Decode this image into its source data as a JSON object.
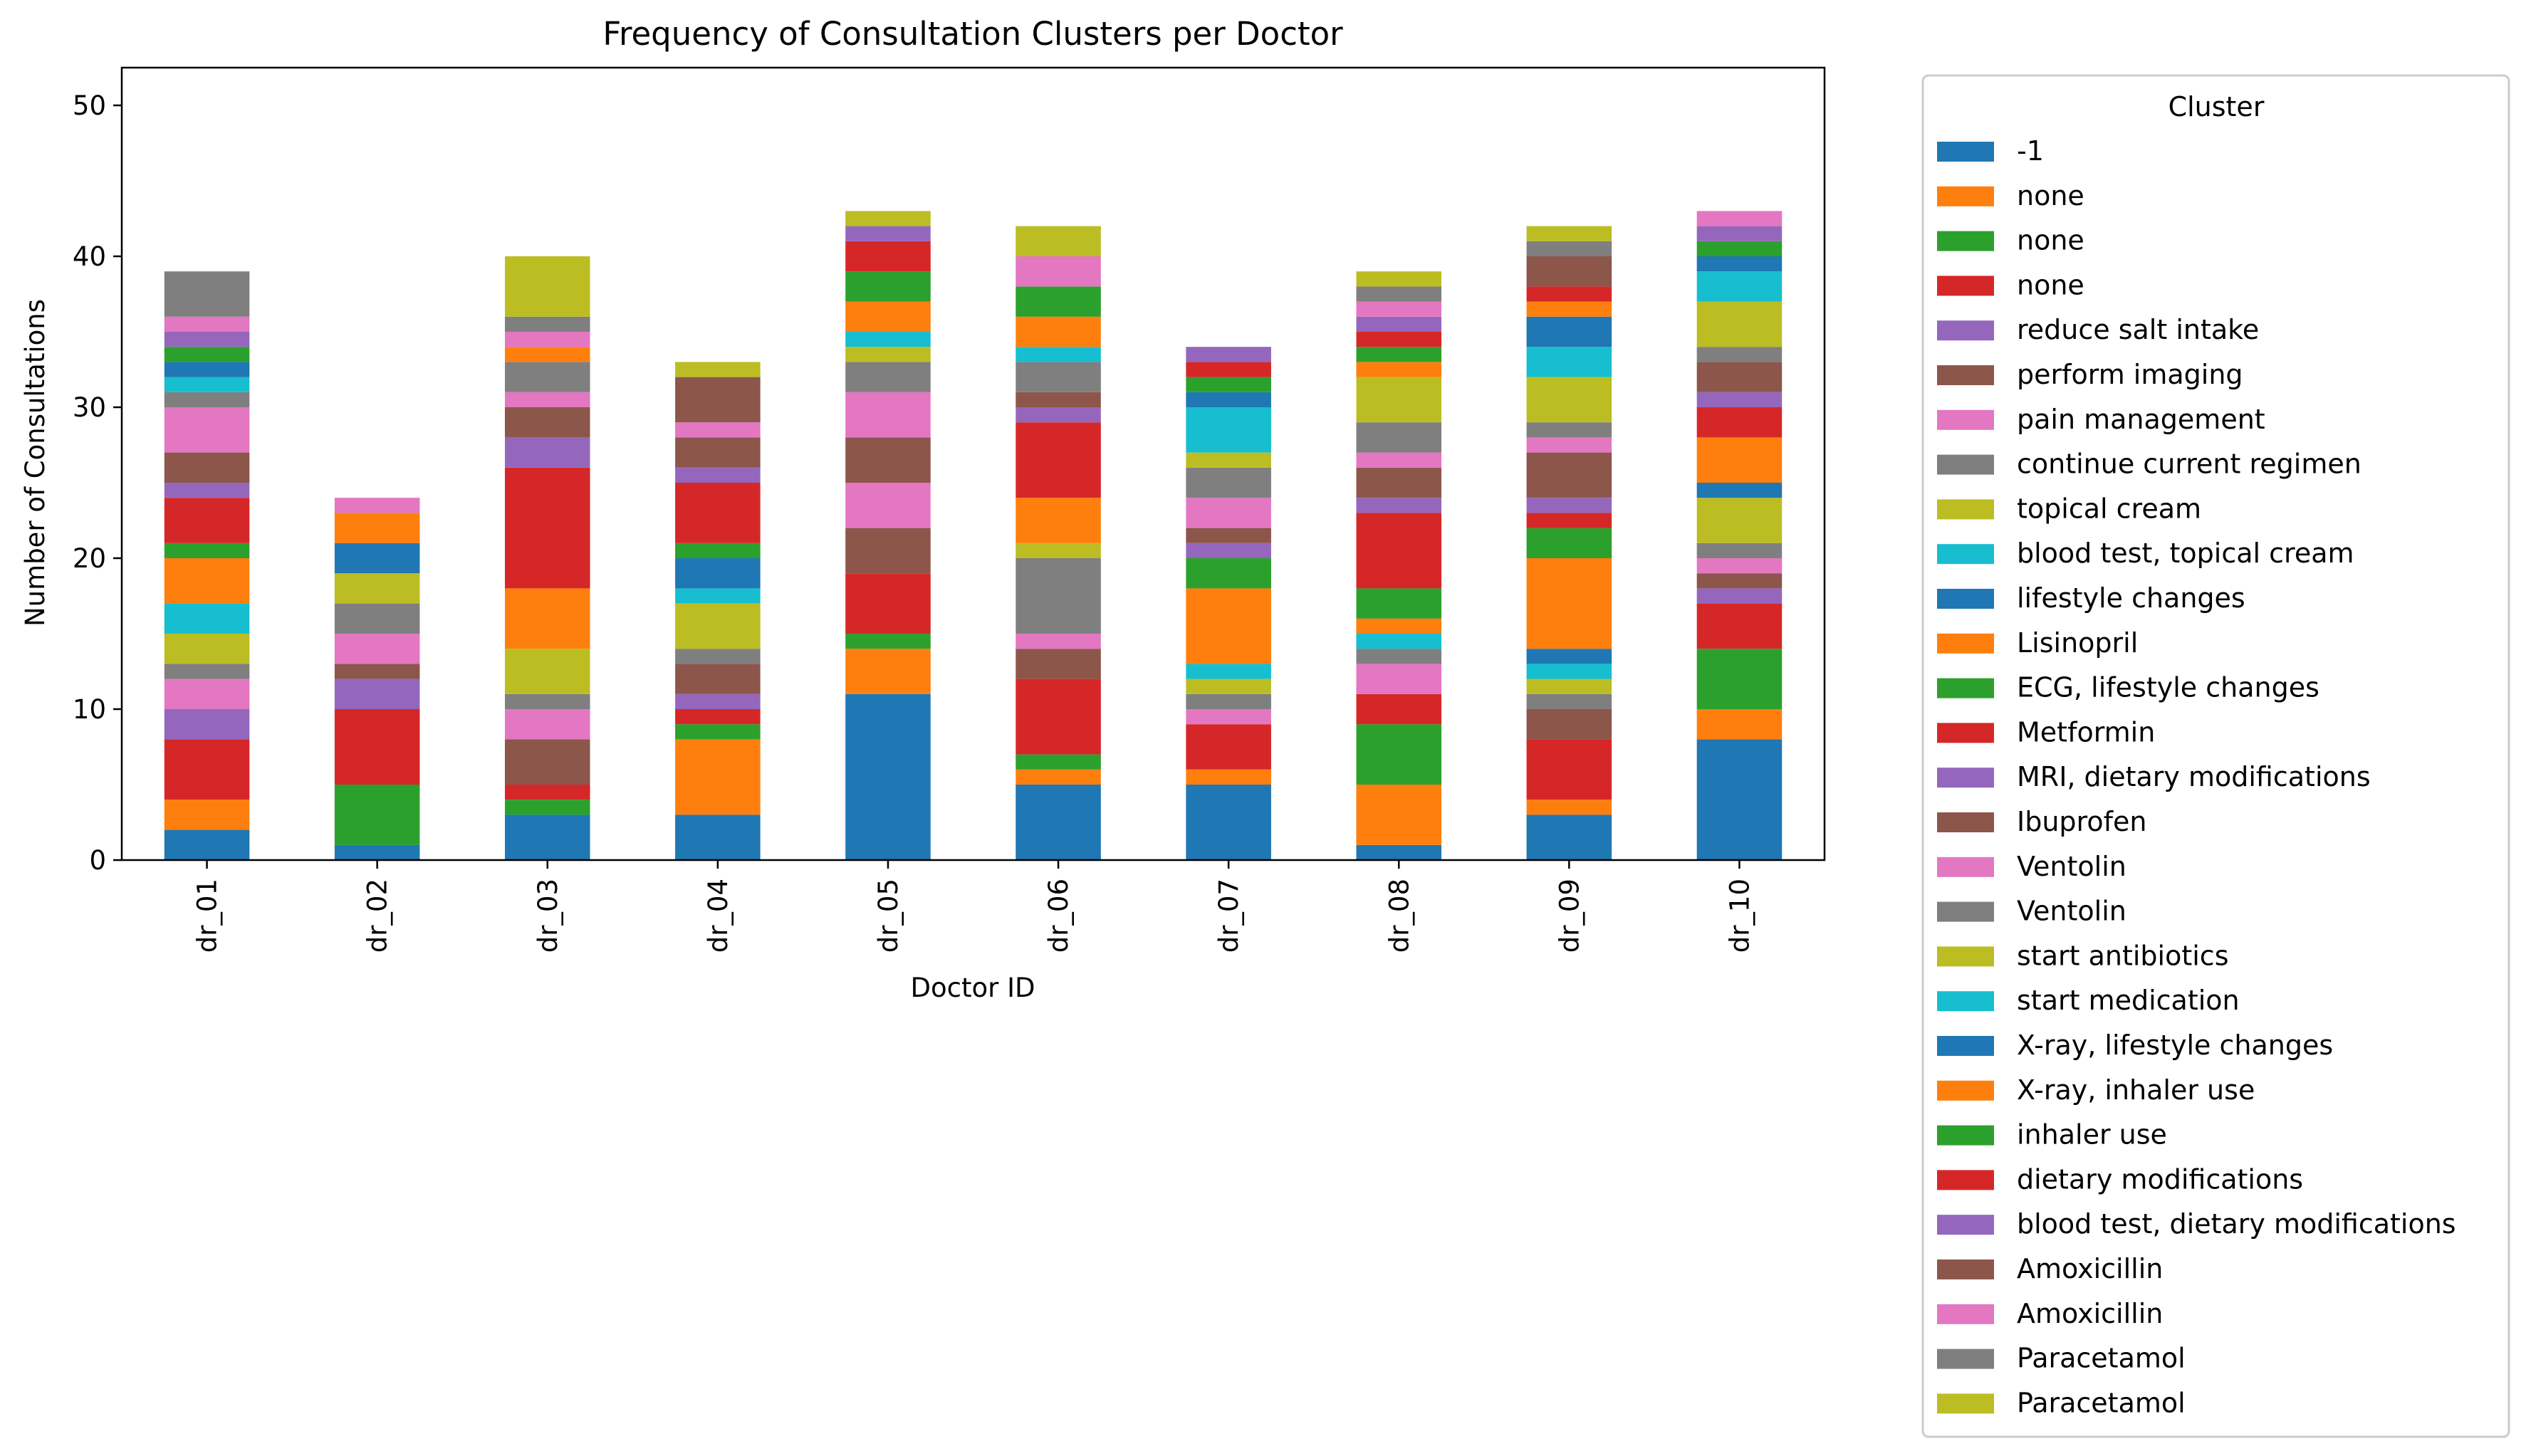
{
  "chart_data": {
    "type": "bar",
    "stacked": true,
    "title": "Frequency of Consultation Clusters per Doctor",
    "xlabel": "Doctor ID",
    "ylabel": "Number of Consultations",
    "ylim": [
      0,
      52.5
    ],
    "yticks": [
      0,
      10,
      20,
      30,
      40,
      50
    ],
    "grid": false,
    "legend_title": "Cluster",
    "legend_position": "outside-right",
    "categories": [
      "dr_01",
      "dr_02",
      "dr_03",
      "dr_04",
      "dr_05",
      "dr_06",
      "dr_07",
      "dr_08",
      "dr_09",
      "dr_10"
    ],
    "series": [
      {
        "name": "-1",
        "color": "#1f77b4",
        "values": [
          2,
          1,
          3,
          3,
          11,
          5,
          5,
          1,
          3,
          8
        ]
      },
      {
        "name": "none",
        "color": "#ff7f0e",
        "values": [
          2,
          0,
          0,
          5,
          3,
          1,
          1,
          4,
          1,
          2
        ]
      },
      {
        "name": "none",
        "color": "#2ca02c",
        "values": [
          0,
          4,
          1,
          1,
          1,
          1,
          0,
          4,
          0,
          4
        ]
      },
      {
        "name": "none",
        "color": "#d62728",
        "values": [
          4,
          5,
          1,
          1,
          4,
          5,
          3,
          2,
          4,
          3
        ]
      },
      {
        "name": "reduce salt intake",
        "color": "#9467bd",
        "values": [
          2,
          2,
          0,
          1,
          0,
          0,
          0,
          0,
          0,
          1
        ]
      },
      {
        "name": "perform imaging",
        "color": "#8c564b",
        "values": [
          0,
          1,
          3,
          2,
          3,
          2,
          0,
          0,
          2,
          1
        ]
      },
      {
        "name": "pain management",
        "color": "#e377c2",
        "values": [
          2,
          2,
          2,
          0,
          3,
          1,
          1,
          2,
          0,
          1
        ]
      },
      {
        "name": "continue current regimen",
        "color": "#7f7f7f",
        "values": [
          1,
          2,
          1,
          1,
          0,
          5,
          1,
          1,
          1,
          1
        ]
      },
      {
        "name": "topical cream",
        "color": "#bcbd22",
        "values": [
          2,
          2,
          3,
          3,
          0,
          1,
          1,
          0,
          1,
          3
        ]
      },
      {
        "name": "blood test, topical cream",
        "color": "#17becf",
        "values": [
          2,
          0,
          0,
          1,
          0,
          0,
          1,
          1,
          1,
          0
        ]
      },
      {
        "name": "lifestyle changes",
        "color": "#1f77b4",
        "values": [
          0,
          2,
          0,
          2,
          0,
          0,
          0,
          0,
          1,
          1
        ]
      },
      {
        "name": "Lisinopril",
        "color": "#ff7f0e",
        "values": [
          3,
          2,
          4,
          0,
          0,
          3,
          5,
          1,
          6,
          3
        ]
      },
      {
        "name": "ECG, lifestyle changes",
        "color": "#2ca02c",
        "values": [
          1,
          0,
          0,
          1,
          0,
          0,
          2,
          2,
          2,
          0
        ]
      },
      {
        "name": "Metformin",
        "color": "#d62728",
        "values": [
          3,
          0,
          8,
          4,
          0,
          5,
          0,
          5,
          1,
          2
        ]
      },
      {
        "name": "MRI, dietary modifications",
        "color": "#9467bd",
        "values": [
          1,
          0,
          2,
          1,
          0,
          1,
          1,
          1,
          1,
          1
        ]
      },
      {
        "name": "Ibuprofen",
        "color": "#8c564b",
        "values": [
          2,
          0,
          2,
          2,
          3,
          1,
          1,
          2,
          3,
          2
        ]
      },
      {
        "name": "Ventolin",
        "color": "#e377c2",
        "values": [
          3,
          0,
          1,
          1,
          3,
          0,
          2,
          1,
          1,
          0
        ]
      },
      {
        "name": "Ventolin",
        "color": "#7f7f7f",
        "values": [
          1,
          0,
          2,
          0,
          2,
          2,
          2,
          2,
          1,
          1
        ]
      },
      {
        "name": "start antibiotics",
        "color": "#bcbd22",
        "values": [
          0,
          0,
          0,
          0,
          1,
          0,
          1,
          3,
          3,
          3
        ]
      },
      {
        "name": "start medication",
        "color": "#17becf",
        "values": [
          1,
          0,
          0,
          0,
          1,
          1,
          3,
          0,
          2,
          2
        ]
      },
      {
        "name": "X-ray, lifestyle changes",
        "color": "#1f77b4",
        "values": [
          1,
          0,
          0,
          0,
          0,
          0,
          1,
          0,
          2,
          1
        ]
      },
      {
        "name": "X-ray, inhaler use",
        "color": "#ff7f0e",
        "values": [
          0,
          0,
          1,
          0,
          2,
          2,
          0,
          1,
          1,
          0
        ]
      },
      {
        "name": "inhaler use",
        "color": "#2ca02c",
        "values": [
          1,
          0,
          0,
          0,
          2,
          2,
          1,
          1,
          0,
          1
        ]
      },
      {
        "name": "dietary modifications",
        "color": "#d62728",
        "values": [
          0,
          0,
          0,
          0,
          2,
          0,
          1,
          1,
          1,
          0
        ]
      },
      {
        "name": "blood test, dietary modifications",
        "color": "#9467bd",
        "values": [
          1,
          0,
          0,
          0,
          1,
          0,
          1,
          1,
          0,
          1
        ]
      },
      {
        "name": "Amoxicillin",
        "color": "#8c564b",
        "values": [
          0,
          0,
          0,
          3,
          0,
          0,
          0,
          0,
          2,
          0
        ]
      },
      {
        "name": "Amoxicillin",
        "color": "#e377c2",
        "values": [
          1,
          1,
          1,
          0,
          0,
          2,
          0,
          1,
          0,
          1
        ]
      },
      {
        "name": "Paracetamol",
        "color": "#7f7f7f",
        "values": [
          3,
          0,
          1,
          0,
          0,
          0,
          0,
          1,
          1,
          0
        ]
      },
      {
        "name": "Paracetamol",
        "color": "#bcbd22",
        "values": [
          0,
          0,
          4,
          1,
          1,
          2,
          0,
          1,
          1,
          0
        ]
      }
    ]
  }
}
